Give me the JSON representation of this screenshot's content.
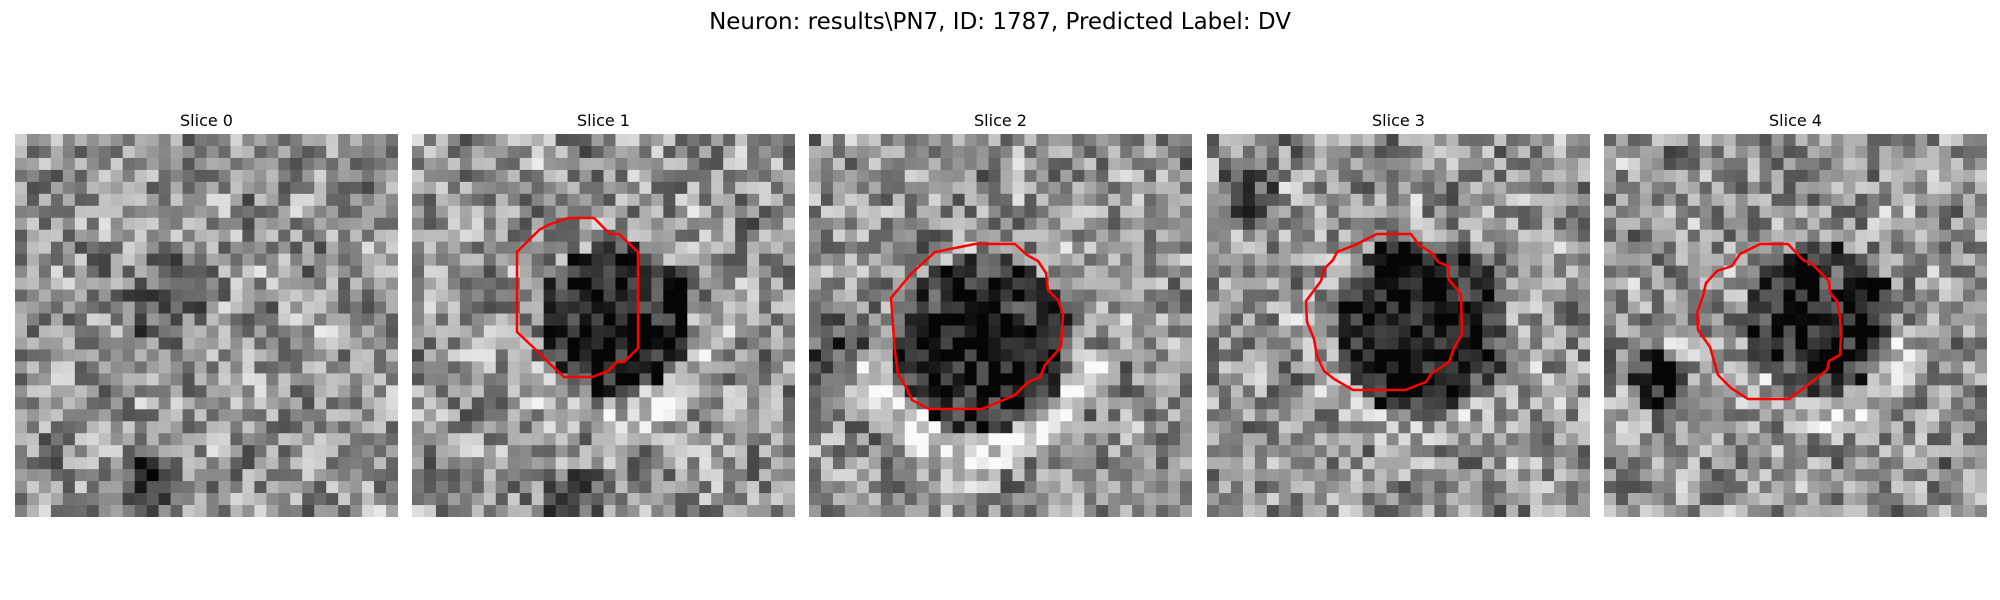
{
  "figure": {
    "title": "Neuron: results\\PN7, ID: 1787, Predicted Label: DV"
  },
  "slices": [
    {
      "label": "Slice 0",
      "has_contour": false
    },
    {
      "label": "Slice 1",
      "has_contour": true
    },
    {
      "label": "Slice 2",
      "has_contour": true
    },
    {
      "label": "Slice 3",
      "has_contour": true
    },
    {
      "label": "Slice 4",
      "has_contour": true
    }
  ],
  "colors": {
    "contour": "#ff0000",
    "background": "#ffffff",
    "colormap": "gray"
  }
}
